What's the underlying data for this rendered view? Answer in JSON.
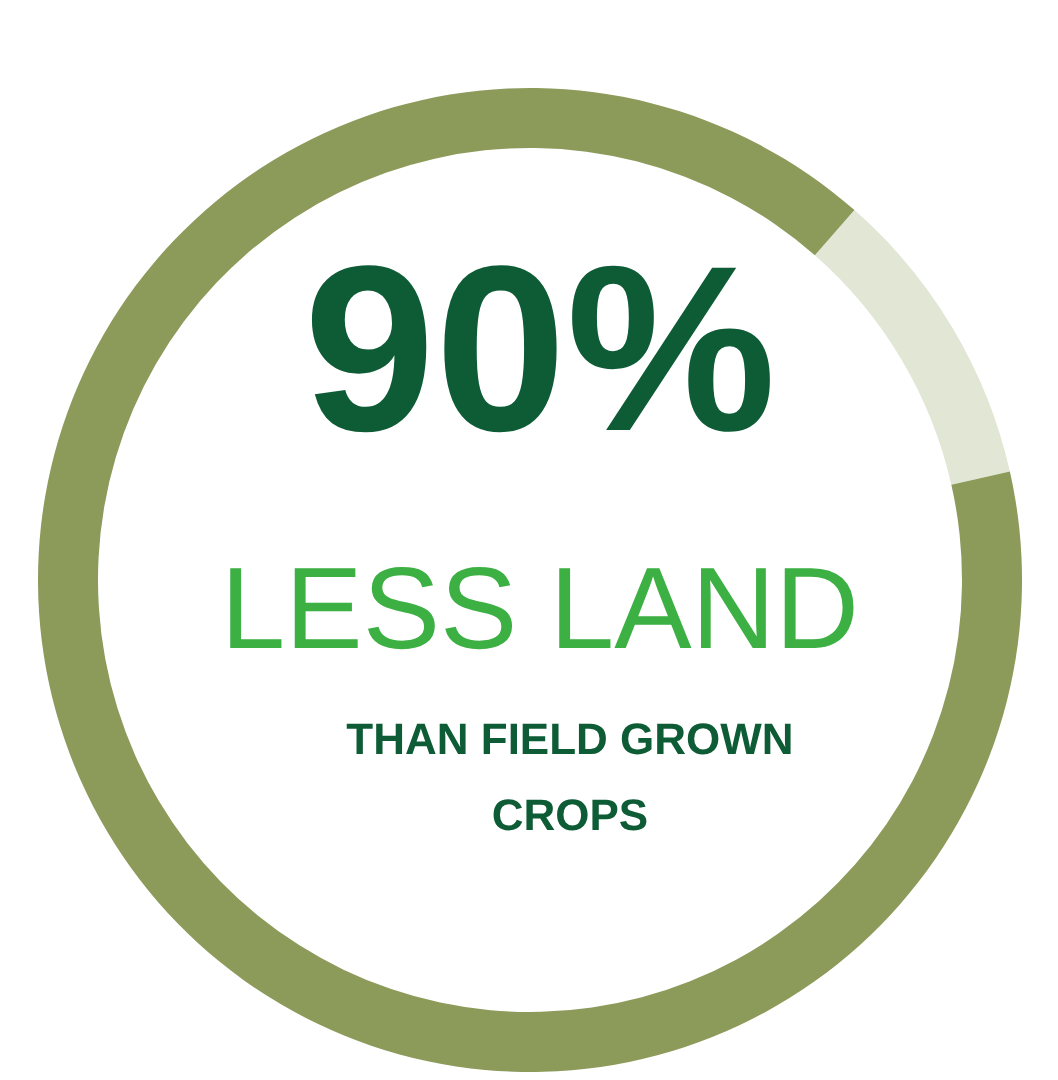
{
  "chart_data": {
    "type": "donut",
    "title": "90%",
    "subtitle": "LESS LAND",
    "annotations": [
      "THAN FIELD GROWN CROPS"
    ],
    "categories": [
      null,
      null
    ],
    "values": [
      10,
      90
    ],
    "colors": [
      "#e1e6d5",
      "#8c9a5a"
    ]
  }
}
